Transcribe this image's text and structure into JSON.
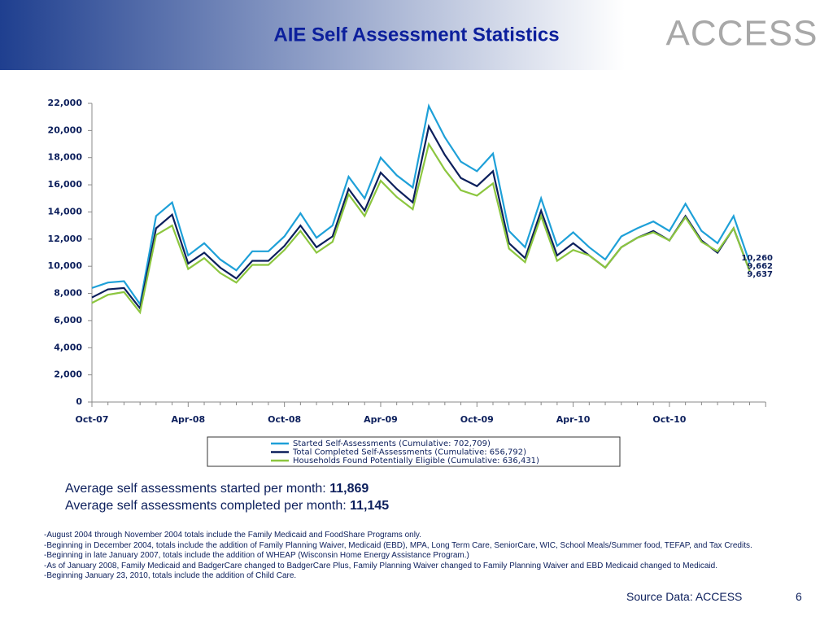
{
  "header": {
    "title": "AIE Self Assessment Statistics",
    "logo": "ACCESS"
  },
  "chart_data": {
    "type": "line",
    "categories": [
      "Oct-07",
      null,
      null,
      null,
      null,
      null,
      "Apr-08",
      null,
      null,
      null,
      null,
      null,
      "Oct-08",
      null,
      null,
      null,
      null,
      null,
      "Apr-09",
      null,
      null,
      null,
      null,
      null,
      "Oct-09",
      null,
      null,
      null,
      null,
      null,
      "Apr-10",
      null,
      null,
      null,
      null,
      null,
      "Oct-10",
      null,
      null,
      null,
      null,
      null
    ],
    "series": [
      {
        "name": "Started Self-Assessments (Cumulative: 702,709)",
        "color": "#1ea0d8",
        "values": [
          8400,
          8800,
          8900,
          7200,
          13700,
          14700,
          10800,
          11700,
          10500,
          9700,
          11100,
          11100,
          12200,
          13900,
          12100,
          13000,
          16600,
          15000,
          18000,
          16700,
          15800,
          21800,
          19500,
          17700,
          17000,
          18300,
          12600,
          11400,
          15000,
          11500,
          12500,
          11400,
          10500,
          12200,
          12800,
          13300,
          12600,
          14600,
          12600,
          11700,
          13700,
          10260
        ],
        "value_labels": [
          null,
          null,
          null,
          null,
          null,
          null,
          null,
          null,
          null,
          null,
          null,
          null,
          null,
          null,
          null,
          null,
          null,
          null,
          null,
          null,
          null,
          null,
          null,
          null,
          null,
          null,
          null,
          null,
          null,
          null,
          null,
          null,
          null,
          null,
          null,
          null,
          null,
          null,
          null,
          null,
          null,
          "10,260"
        ]
      },
      {
        "name": "Total Completed Self-Assessments (Cumulative: 656,792)",
        "color": "#0c1f5c",
        "values": [
          7700,
          8300,
          8400,
          6900,
          12800,
          13800,
          10200,
          11000,
          9900,
          9100,
          10400,
          10400,
          11500,
          13000,
          11400,
          12200,
          15700,
          14100,
          16900,
          15700,
          14700,
          20300,
          18200,
          16500,
          15900,
          17000,
          11700,
          10600,
          14100,
          10800,
          11700,
          10800,
          9900,
          11400,
          12100,
          12600,
          11900,
          13700,
          11900,
          11000,
          12800,
          9662
        ],
        "value_labels": [
          null,
          null,
          null,
          null,
          null,
          null,
          null,
          null,
          null,
          null,
          null,
          null,
          null,
          null,
          null,
          null,
          null,
          null,
          null,
          null,
          null,
          null,
          null,
          null,
          null,
          null,
          null,
          null,
          null,
          null,
          null,
          null,
          null,
          null,
          null,
          null,
          null,
          null,
          null,
          null,
          null,
          "9,662"
        ]
      },
      {
        "name": "Households Found Potentially Eligible (Cumulative: 636,431)",
        "color": "#8cc63f",
        "values": [
          7300,
          7900,
          8100,
          6600,
          12300,
          13000,
          9800,
          10600,
          9500,
          8800,
          10100,
          10100,
          11200,
          12600,
          11000,
          11800,
          15300,
          13700,
          16300,
          15100,
          14200,
          19000,
          17100,
          15600,
          15200,
          16100,
          11300,
          10300,
          13700,
          10400,
          11200,
          10800,
          9900,
          11400,
          12100,
          12500,
          11900,
          13600,
          11800,
          11100,
          12800,
          9637
        ],
        "value_labels": [
          null,
          null,
          null,
          null,
          null,
          null,
          null,
          null,
          null,
          null,
          null,
          null,
          null,
          null,
          null,
          null,
          null,
          null,
          null,
          null,
          null,
          null,
          null,
          null,
          null,
          null,
          null,
          null,
          null,
          null,
          null,
          null,
          null,
          null,
          null,
          null,
          null,
          null,
          null,
          null,
          null,
          "9,637"
        ]
      }
    ],
    "ylim": [
      0,
      22000
    ],
    "yticks": [
      0,
      {
        "value": 2000,
        "label": "2,000"
      },
      {
        "value": 4000,
        "label": "4,000"
      },
      {
        "value": 6000,
        "label": "6,000"
      },
      {
        "value": 8000,
        "label": "8,000"
      },
      {
        "value": 10000,
        "label": "10,000"
      },
      {
        "value": 12000,
        "label": "12,000"
      },
      {
        "value": 14000,
        "label": "14,000"
      },
      {
        "value": 16000,
        "label": "16,000"
      },
      {
        "value": 18000,
        "label": "18,000"
      },
      {
        "value": 20000,
        "label": "20,000"
      },
      {
        "value": 22000,
        "label": "22,000"
      }
    ],
    "grid": false,
    "legend": "bottom"
  },
  "summary": {
    "started_label": "Average self assessments started per month:",
    "started_value": "11,869",
    "completed_label": "Average self assessments completed per month:",
    "completed_value": "11,145"
  },
  "notes": [
    "-August 2004 through November 2004 totals include the Family Medicaid and FoodShare Programs only.",
    "-Beginning in December 2004, totals include the addition of Family Planning Waiver, Medicaid (EBD), MPA, Long Term Care, SeniorCare, WIC, School Meals/Summer food, TEFAP, and Tax Credits.",
    "-Beginning in late January 2007, totals include the addition of WHEAP (Wisconsin Home Energy Assistance Program.)",
    "-As of January 2008, Family Medicaid and BadgerCare changed to BadgerCare Plus, Family Planning Waiver changed to Family Planning Waiver and EBD Medicaid changed to Medicaid.",
    "-Beginning January 23, 2010, totals include the addition of Child Care."
  ],
  "footer": {
    "source": "Source Data: ACCESS",
    "page": "6"
  }
}
